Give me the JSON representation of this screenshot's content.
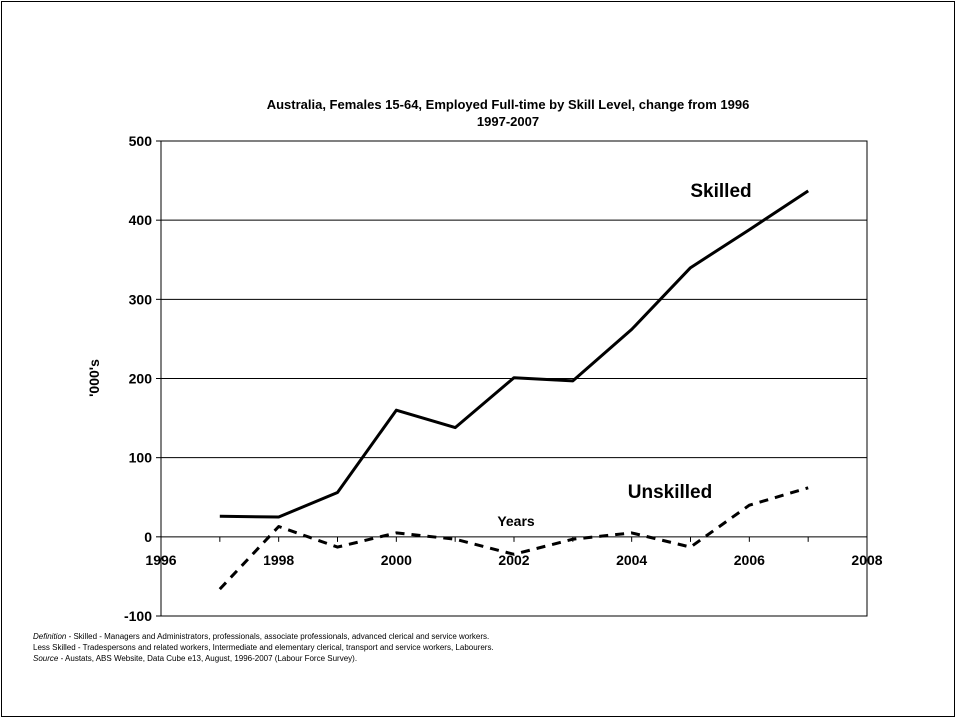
{
  "chart_data": {
    "type": "line",
    "title": "Australia, Females 15-64, Employed Full-time by Skill Level, change from 1996",
    "subtitle": "1997-2007",
    "xlabel": "Years",
    "ylabel": "'000's",
    "xlim": [
      1996,
      2008
    ],
    "ylim": [
      -100,
      500
    ],
    "x_ticks": [
      1996,
      1998,
      2000,
      2002,
      2004,
      2006,
      2008
    ],
    "y_ticks": [
      -100,
      0,
      100,
      200,
      300,
      400,
      500
    ],
    "grid": "horizontal",
    "series": [
      {
        "name": "Skilled",
        "style": "solid",
        "color": "#000000",
        "x": [
          1997,
          1998,
          1999,
          2000,
          2001,
          2002,
          2003,
          2004,
          2005,
          2006,
          2007
        ],
        "y": [
          26,
          25,
          56,
          160,
          138,
          201,
          197,
          262,
          340,
          388,
          437
        ]
      },
      {
        "name": "Unskilled",
        "style": "dashed",
        "color": "#000000",
        "x": [
          1997,
          1998,
          1999,
          2000,
          2001,
          2002,
          2003,
          2004,
          2005,
          2006,
          2007
        ],
        "y": [
          -66,
          13,
          -13,
          5,
          -3,
          -22,
          -3,
          5,
          -13,
          40,
          62
        ]
      }
    ]
  },
  "footnotes": {
    "definition_label": "Definition",
    "definition_text": " - Skilled - Managers and Administrators, professionals, associate professionals, advanced clerical and service workers.",
    "less_skilled_text": "Less Skilled - Tradespersons and related workers, Intermediate and elementary clerical, transport and service workers, Labourers.",
    "source_label": "Source",
    "source_text": " - Austats, ABS Website, Data Cube e13, August, 1996-2007 (Labour Force Survey)."
  }
}
